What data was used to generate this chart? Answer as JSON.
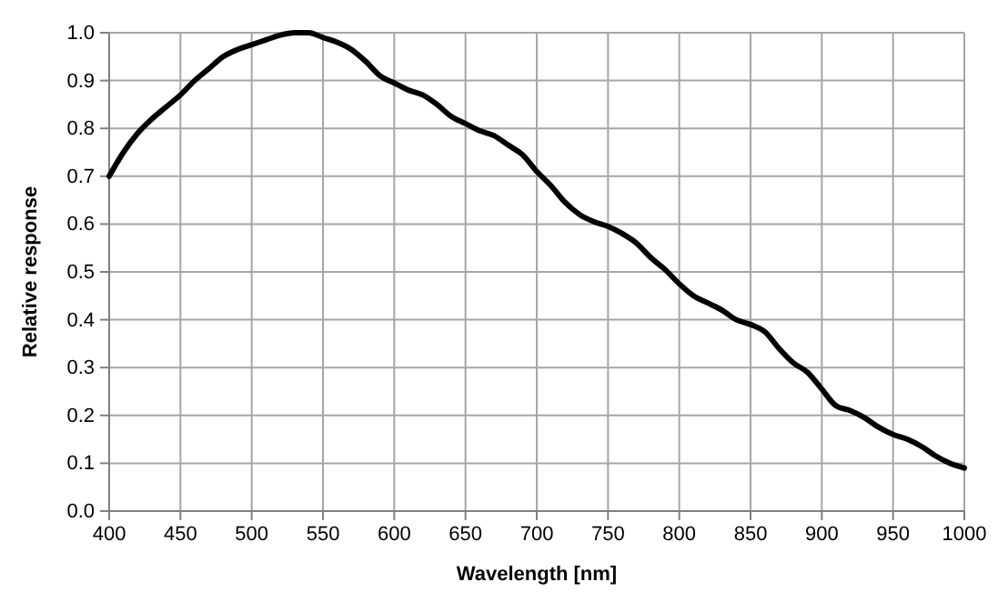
{
  "chart_data": {
    "type": "line",
    "xlabel": "Wavelength [nm]",
    "ylabel": "Relative response",
    "x": [
      400,
      410,
      420,
      430,
      440,
      450,
      460,
      470,
      480,
      490,
      500,
      510,
      520,
      530,
      540,
      550,
      560,
      570,
      580,
      590,
      600,
      610,
      620,
      630,
      640,
      650,
      660,
      670,
      680,
      690,
      700,
      710,
      720,
      730,
      740,
      750,
      760,
      770,
      780,
      790,
      800,
      810,
      820,
      830,
      840,
      850,
      860,
      870,
      880,
      890,
      900,
      910,
      920,
      930,
      940,
      950,
      960,
      970,
      980,
      990,
      1000
    ],
    "series": [
      {
        "color": "#000000",
        "values": [
          0.7,
          0.75,
          0.79,
          0.82,
          0.845,
          0.87,
          0.9,
          0.925,
          0.95,
          0.965,
          0.975,
          0.985,
          0.995,
          1.0,
          1.0,
          0.99,
          0.98,
          0.965,
          0.94,
          0.91,
          0.895,
          0.88,
          0.87,
          0.85,
          0.825,
          0.81,
          0.795,
          0.785,
          0.765,
          0.745,
          0.71,
          0.68,
          0.645,
          0.62,
          0.605,
          0.595,
          0.58,
          0.56,
          0.53,
          0.505,
          0.475,
          0.45,
          0.435,
          0.42,
          0.4,
          0.39,
          0.375,
          0.34,
          0.31,
          0.29,
          0.255,
          0.22,
          0.21,
          0.195,
          0.175,
          0.16,
          0.15,
          0.135,
          0.115,
          0.1,
          0.09
        ]
      }
    ],
    "xlim": [
      400,
      1000
    ],
    "xticks": [
      400,
      450,
      500,
      550,
      600,
      650,
      700,
      750,
      800,
      850,
      900,
      950,
      1000
    ],
    "ylim": [
      0,
      1
    ],
    "yticks": [
      {
        "value": 0,
        "label": "0.0"
      },
      0.1,
      0.2,
      0.3,
      0.4,
      0.5,
      0.6,
      0.7,
      0.8,
      0.9,
      {
        "value": 1,
        "label": "1.0"
      }
    ],
    "grid": true,
    "marker": "none",
    "line_style": "solid"
  }
}
